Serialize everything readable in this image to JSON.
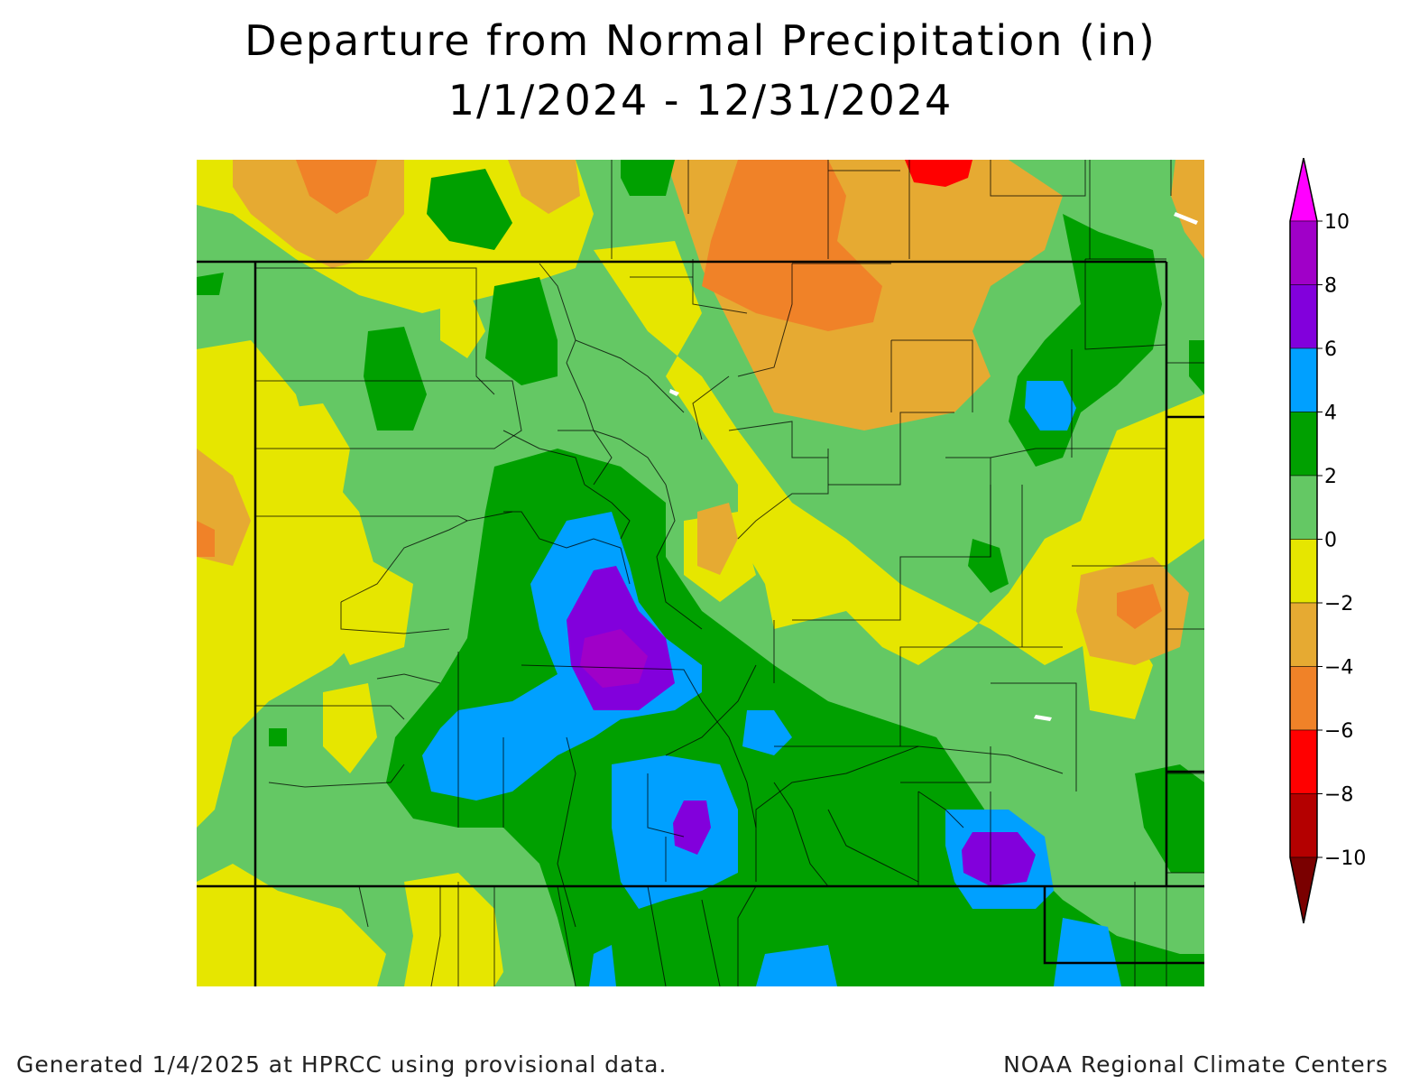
{
  "map": {
    "title_line1": "Departure from Normal Precipitation (in)",
    "title_line2": "1/1/2024 - 12/31/2024",
    "footer_left": "Generated 1/4/2025 at HPRCC using provisional data.",
    "footer_right": "NOAA Regional Climate Centers"
  },
  "legend": {
    "bins": [
      {
        "color": "#ff00ff"
      },
      {
        "color": "#a000c8"
      },
      {
        "color": "#8200dc"
      },
      {
        "color": "#00a0ff"
      },
      {
        "color": "#00a000"
      },
      {
        "color": "#64c864"
      },
      {
        "color": "#e6e600"
      },
      {
        "color": "#e6aa32"
      },
      {
        "color": "#f08228"
      },
      {
        "color": "#ff0000"
      },
      {
        "color": "#b40000"
      },
      {
        "color": "#7a0000"
      }
    ],
    "labels": [
      "10",
      "8",
      "6",
      "4",
      "2",
      "0",
      "−2",
      "−4",
      "−6",
      "−8",
      "−10"
    ]
  }
}
